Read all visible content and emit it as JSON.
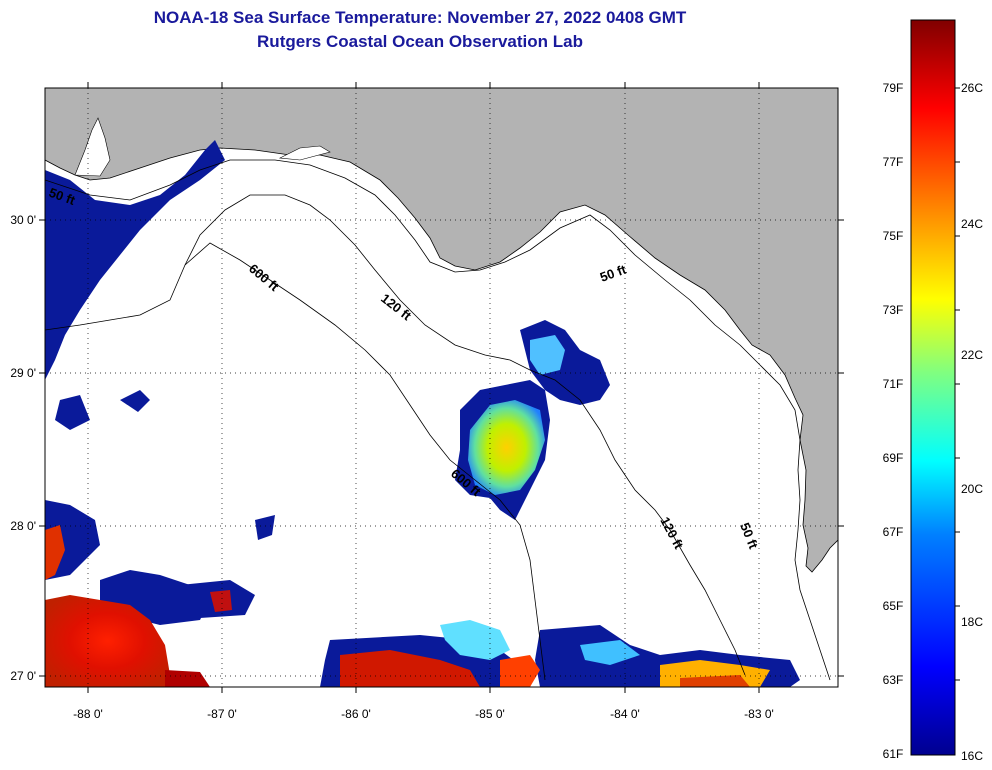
{
  "header": {
    "title": "NOAA-18 Sea Surface Temperature:  November 27, 2022 0408 GMT",
    "subtitle": "Rutgers Coastal Ocean Observation Lab"
  },
  "map": {
    "lon_labels": [
      "-88 0'",
      "-87 0'",
      "-86 0'",
      "-85 0'",
      "-84 0'",
      "-83 0'"
    ],
    "lat_labels": [
      "30 0'",
      "29 0'",
      "28 0'",
      "27 0'"
    ],
    "isobath_labels": [
      "50 ft",
      "600 ft",
      "120 ft",
      "50 ft",
      "600 ft",
      "120 ft",
      "50 ft"
    ],
    "colors": {
      "land": "#b3b3b3",
      "cloud": "#ffffff",
      "ocean_warm": "#cc0000",
      "ocean_cold": "#00008f"
    }
  },
  "colorbar": {
    "fahrenheit_labels": [
      "79F",
      "77F",
      "75F",
      "73F",
      "71F",
      "69F",
      "67F",
      "65F",
      "63F",
      "61F"
    ],
    "celsius_labels": [
      "26C",
      "24C",
      "22C",
      "20C",
      "18C",
      "16C"
    ],
    "colors": [
      "#00008f",
      "#0000ff",
      "#0080ff",
      "#00ffff",
      "#80ff80",
      "#ffff00",
      "#ff8000",
      "#ff0000",
      "#800000"
    ]
  }
}
